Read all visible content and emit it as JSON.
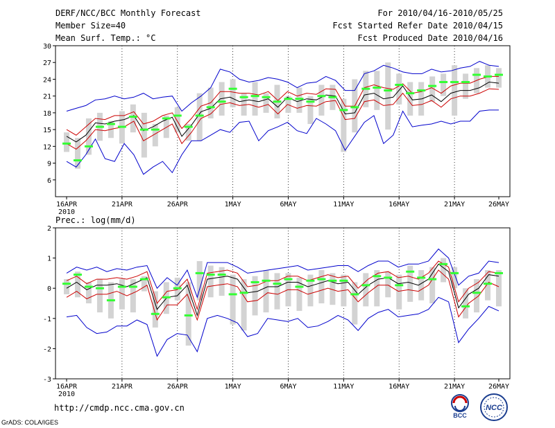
{
  "header": {
    "title": "DERF/NCC/BCC Monthly Forecast",
    "member_size": "Member Size=40",
    "variable1": "Mean Surf. Temp.: °C",
    "period": "For 2010/04/16-2010/05/25",
    "started": "Fcst Started Refer Date 2010/04/15",
    "produced": "Fcst Produced Date 2010/04/16"
  },
  "footer": {
    "url": "http://cmdp.ncc.cma.gov.cn",
    "credit": "GrADS: COLA/IGES",
    "logo_left": "BCC",
    "logo_right": "NCC"
  },
  "colors": {
    "mean": "#000000",
    "inner": "#cc0000",
    "outer": "#0000cc",
    "median": "#33ff33",
    "box": "#d3d3d3"
  },
  "chart_data": [
    {
      "type": "line",
      "title": "Mean Surf. Temp.: °C",
      "x_tick_labels": [
        "16APR",
        "21APR",
        "26APR",
        "1MAY",
        "6MAY",
        "11MAY",
        "16MAY",
        "21MAY",
        "26MAY"
      ],
      "x_year_label": "2010",
      "ylim": [
        3,
        30
      ],
      "yticks": [
        6,
        9,
        12,
        15,
        18,
        21,
        24,
        27,
        30
      ],
      "days": 40,
      "series": [
        {
          "name": "mean",
          "values": [
            13.8,
            12.8,
            14.0,
            16.2,
            16.0,
            16.5,
            16.8,
            17.5,
            14.8,
            15.5,
            16.5,
            17.2,
            13.8,
            15.8,
            18.2,
            18.8,
            20.5,
            20.8,
            20.0,
            20.3,
            20.0,
            20.5,
            19.0,
            20.8,
            20.0,
            20.5,
            20.3,
            21.2,
            21.0,
            17.8,
            18.0,
            21.2,
            21.5,
            20.5,
            20.8,
            22.8,
            20.3,
            20.5,
            21.2,
            20.0,
            21.5,
            22.0,
            22.0,
            22.5,
            23.5,
            23.3
          ]
        },
        {
          "name": "upper_inner",
          "values": [
            15.0,
            14.0,
            15.5,
            17.0,
            16.8,
            17.5,
            17.5,
            18.2,
            16.0,
            16.5,
            17.5,
            18.0,
            15.2,
            17.0,
            19.2,
            19.8,
            21.8,
            21.8,
            21.5,
            21.5,
            21.2,
            21.8,
            20.2,
            21.8,
            21.0,
            21.5,
            21.3,
            22.3,
            22.2,
            19.2,
            19.2,
            22.5,
            23.0,
            22.5,
            22.2,
            23.2,
            21.5,
            21.8,
            22.5,
            21.5,
            22.8,
            23.3,
            23.3,
            24.0,
            24.5,
            24.5
          ]
        },
        {
          "name": "lower_inner",
          "values": [
            12.5,
            11.5,
            13.0,
            15.0,
            14.8,
            15.2,
            15.5,
            16.5,
            13.0,
            14.0,
            15.0,
            16.0,
            12.5,
            14.5,
            17.0,
            17.8,
            19.5,
            19.8,
            19.3,
            19.5,
            19.0,
            19.5,
            17.8,
            19.5,
            18.8,
            19.3,
            19.2,
            20.0,
            20.2,
            16.8,
            17.0,
            20.0,
            20.3,
            19.3,
            19.5,
            21.5,
            19.3,
            19.5,
            20.2,
            19.0,
            20.5,
            21.0,
            21.0,
            21.5,
            22.3,
            22.2
          ]
        },
        {
          "name": "upper_outer",
          "values": [
            18.3,
            18.8,
            19.3,
            20.3,
            20.5,
            21.0,
            20.5,
            20.8,
            21.5,
            20.5,
            20.8,
            21.0,
            18.3,
            19.8,
            21.0,
            22.5,
            25.8,
            25.3,
            24.0,
            23.5,
            23.8,
            24.3,
            24.0,
            23.5,
            22.5,
            23.3,
            23.5,
            24.5,
            23.8,
            22.0,
            22.0,
            25.0,
            25.5,
            26.5,
            26.0,
            25.3,
            25.0,
            25.0,
            25.8,
            25.3,
            25.5,
            26.0,
            26.3,
            27.2,
            26.5,
            26.3
          ]
        },
        {
          "name": "lower_outer",
          "values": [
            9.3,
            8.3,
            10.5,
            13.3,
            9.8,
            9.3,
            12.5,
            10.5,
            7.0,
            8.3,
            9.3,
            7.3,
            10.5,
            13.0,
            13.0,
            14.0,
            15.0,
            14.5,
            16.3,
            16.5,
            13.0,
            14.8,
            15.5,
            16.3,
            14.8,
            14.3,
            17.0,
            16.0,
            14.8,
            11.3,
            13.8,
            16.3,
            17.5,
            12.5,
            14.0,
            18.3,
            15.5,
            15.8,
            16.0,
            16.5,
            16.0,
            16.5,
            16.5,
            18.3,
            18.5,
            18.5
          ]
        },
        {
          "name": "median",
          "values": [
            12.5,
            9.5,
            12.0,
            15.5,
            16.0,
            15.5,
            17.3,
            15.0,
            15.0,
            17.0,
            17.5,
            15.5,
            17.5,
            19.0,
            20.0,
            22.3,
            20.8,
            21.0,
            20.8,
            20.0,
            20.5,
            20.5,
            20.0,
            21.0,
            20.8,
            18.5,
            19.0,
            22.3,
            22.5,
            22.0,
            23.0,
            21.5,
            22.0,
            22.8,
            23.5,
            23.5,
            23.5,
            24.8,
            24.5,
            24.8
          ]
        },
        {
          "name": "box_high",
          "values": [
            14.5,
            13.5,
            17.0,
            18.0,
            16.5,
            18.3,
            19.5,
            18.0,
            16.0,
            17.5,
            19.0,
            16.0,
            21.5,
            22.5,
            23.5,
            24.0,
            21.5,
            23.5,
            21.5,
            23.0,
            21.0,
            22.5,
            21.0,
            23.0,
            23.0,
            20.5,
            24.0,
            25.5,
            25.5,
            27.0,
            25.0,
            23.5,
            23.5,
            24.5,
            25.0,
            26.5,
            25.0,
            26.0,
            26.5,
            26.0
          ]
        },
        {
          "name": "box_low",
          "values": [
            11.0,
            8.0,
            10.5,
            13.0,
            13.5,
            12.5,
            14.5,
            10.0,
            12.0,
            13.5,
            14.5,
            13.0,
            13.0,
            17.0,
            17.5,
            19.0,
            17.5,
            17.5,
            18.0,
            17.0,
            18.0,
            18.0,
            16.0,
            17.5,
            18.5,
            11.0,
            14.5,
            19.0,
            18.5,
            15.0,
            19.5,
            17.5,
            17.5,
            20.0,
            21.0,
            17.5,
            20.5,
            21.5,
            22.5,
            22.5
          ]
        }
      ]
    },
    {
      "type": "line",
      "title": "Prec.: log(mm/d)",
      "x_tick_labels": [
        "16APR",
        "21APR",
        "26APR",
        "1MAY",
        "6MAY",
        "11MAY",
        "16MAY",
        "21MAY",
        "26MAY"
      ],
      "x_year_label": "2010",
      "ylim": [
        -3,
        2
      ],
      "yticks": [
        -3,
        -2,
        -1,
        0,
        1,
        2
      ],
      "days": 40,
      "series": [
        {
          "name": "mean",
          "values": [
            0.0,
            0.2,
            -0.05,
            0.1,
            0.1,
            0.15,
            0.05,
            0.2,
            0.35,
            -0.7,
            -0.3,
            -0.25,
            0.1,
            -0.9,
            0.3,
            0.35,
            0.4,
            0.3,
            -0.15,
            -0.1,
            0.05,
            0.05,
            0.2,
            0.2,
            0.05,
            0.15,
            0.25,
            0.15,
            0.2,
            -0.2,
            0.1,
            0.3,
            0.35,
            0.15,
            0.2,
            0.1,
            0.3,
            0.8,
            0.55,
            -0.65,
            -0.2,
            0.0,
            0.45,
            0.4
          ]
        },
        {
          "name": "upper_inner",
          "values": [
            0.25,
            0.4,
            0.15,
            0.3,
            0.3,
            0.35,
            0.3,
            0.4,
            0.55,
            -0.5,
            -0.1,
            -0.05,
            0.3,
            -0.7,
            0.5,
            0.55,
            0.6,
            0.5,
            0.05,
            0.1,
            0.25,
            0.25,
            0.4,
            0.4,
            0.25,
            0.35,
            0.45,
            0.35,
            0.4,
            0.0,
            0.3,
            0.5,
            0.55,
            0.35,
            0.4,
            0.3,
            0.5,
            0.9,
            0.7,
            -0.45,
            0.0,
            0.2,
            0.55,
            0.5
          ]
        },
        {
          "name": "lower_inner",
          "values": [
            -0.3,
            -0.1,
            -0.35,
            -0.2,
            -0.2,
            -0.1,
            -0.25,
            -0.1,
            0.1,
            -1.05,
            -0.55,
            -0.55,
            -0.2,
            -1.05,
            0.05,
            0.1,
            0.15,
            0.05,
            -0.45,
            -0.4,
            -0.15,
            -0.2,
            -0.05,
            -0.05,
            -0.2,
            -0.1,
            0.0,
            -0.1,
            -0.05,
            -0.45,
            -0.15,
            0.1,
            0.1,
            -0.1,
            -0.05,
            -0.1,
            0.1,
            0.6,
            0.3,
            -0.95,
            -0.5,
            -0.25,
            0.2,
            0.05
          ]
        },
        {
          "name": "upper_outer",
          "values": [
            0.5,
            0.7,
            0.6,
            0.7,
            0.55,
            0.65,
            0.6,
            0.7,
            0.75,
            0.0,
            0.35,
            0.1,
            0.6,
            -0.3,
            0.85,
            0.85,
            0.85,
            0.7,
            0.5,
            0.55,
            0.6,
            0.65,
            0.7,
            0.75,
            0.6,
            0.65,
            0.7,
            0.75,
            0.75,
            0.55,
            0.75,
            0.9,
            0.9,
            0.7,
            0.8,
            0.8,
            0.9,
            1.3,
            1.0,
            0.1,
            0.4,
            0.5,
            0.9,
            0.85
          ]
        },
        {
          "name": "lower_outer",
          "values": [
            -0.95,
            -0.9,
            -1.3,
            -1.5,
            -1.45,
            -1.25,
            -1.25,
            -1.05,
            -1.2,
            -2.25,
            -1.7,
            -1.5,
            -1.55,
            -2.1,
            -1.0,
            -0.9,
            -1.0,
            -1.15,
            -1.6,
            -1.5,
            -1.0,
            -1.05,
            -1.1,
            -1.0,
            -1.3,
            -1.25,
            -1.1,
            -0.9,
            -1.05,
            -1.4,
            -1.0,
            -0.8,
            -0.7,
            -0.95,
            -0.9,
            -0.85,
            -0.7,
            -0.3,
            -0.45,
            -1.8,
            -1.35,
            -1.0,
            -0.6,
            -0.75
          ]
        },
        {
          "name": "median",
          "values": [
            0.15,
            0.45,
            0.05,
            0.0,
            -0.4,
            0.05,
            0.05,
            0.3,
            -0.85,
            -0.3,
            0.0,
            -0.9,
            0.5,
            0.45,
            0.45,
            -0.2,
            -0.15,
            0.2,
            0.25,
            0.15,
            0.3,
            0.05,
            0.25,
            0.3,
            0.25,
            0.25,
            -0.2,
            0.1,
            0.4,
            0.35,
            0.1,
            0.55,
            0.35,
            0.3,
            0.8,
            0.5,
            -0.6,
            -0.15,
            0.15,
            0.5
          ]
        },
        {
          "name": "box_high",
          "values": [
            0.3,
            0.55,
            0.2,
            0.3,
            0.2,
            0.3,
            0.3,
            0.4,
            -0.1,
            0.2,
            0.35,
            0.2,
            0.9,
            0.75,
            0.7,
            0.45,
            0.3,
            0.4,
            0.6,
            0.5,
            0.5,
            0.35,
            0.45,
            0.6,
            0.5,
            0.45,
            0.2,
            0.5,
            0.6,
            0.55,
            0.45,
            0.75,
            0.6,
            0.7,
            1.0,
            0.7,
            0.0,
            0.3,
            0.6,
            0.6
          ]
        },
        {
          "name": "box_low",
          "values": [
            -0.2,
            -0.3,
            -0.5,
            -0.8,
            -1.0,
            -0.7,
            -0.8,
            -0.1,
            -1.3,
            -0.85,
            -0.4,
            -1.9,
            -0.4,
            -0.3,
            -0.25,
            -1.2,
            -1.4,
            -0.9,
            -0.8,
            -0.7,
            -0.6,
            -0.75,
            -0.6,
            -0.5,
            -0.55,
            -0.6,
            -1.2,
            -0.6,
            -0.6,
            -0.3,
            -0.7,
            -0.45,
            -0.4,
            -0.5,
            0.2,
            0.0,
            -1.0,
            -0.8,
            -0.4,
            -0.6
          ]
        }
      ]
    }
  ]
}
